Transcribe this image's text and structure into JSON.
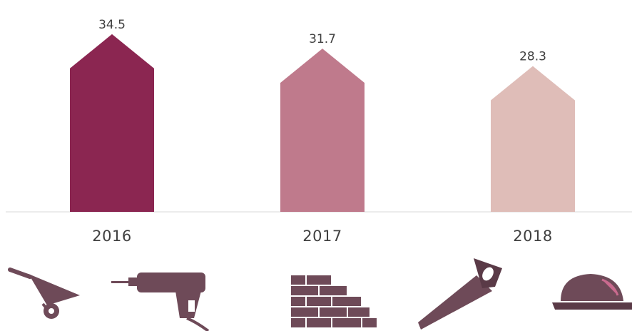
{
  "chart_data": {
    "type": "bar",
    "categories": [
      "2016",
      "2017",
      "2018"
    ],
    "values": [
      34.5,
      31.7,
      28.3
    ],
    "bar_colors": [
      "#8b2651",
      "#bf7a8c",
      "#dfbdb8"
    ],
    "bar_shape": "arrow-top",
    "ylim": [
      0,
      40
    ],
    "grid": false,
    "legend": "none",
    "data_labels": true
  },
  "decorations": {
    "icons": [
      "wheelbarrow-icon",
      "power-drill-icon",
      "brick-wall-icon",
      "hand-saw-icon",
      "hard-hat-icon"
    ],
    "icon_color": "#6e4a58"
  }
}
